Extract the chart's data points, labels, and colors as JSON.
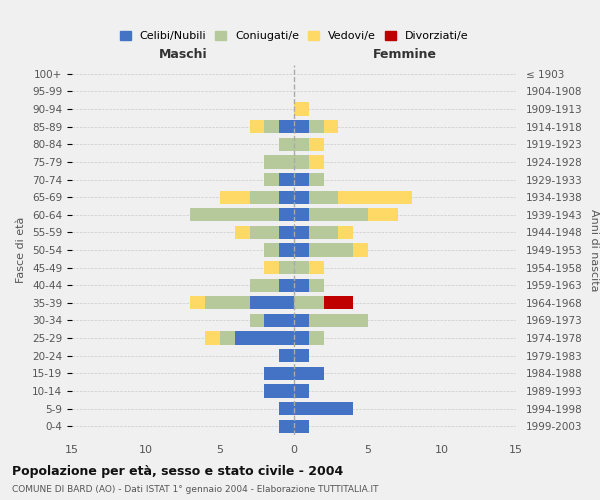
{
  "age_groups": [
    "0-4",
    "5-9",
    "10-14",
    "15-19",
    "20-24",
    "25-29",
    "30-34",
    "35-39",
    "40-44",
    "45-49",
    "50-54",
    "55-59",
    "60-64",
    "65-69",
    "70-74",
    "75-79",
    "80-84",
    "85-89",
    "90-94",
    "95-99",
    "100+"
  ],
  "birth_years": [
    "1999-2003",
    "1994-1998",
    "1989-1993",
    "1984-1988",
    "1979-1983",
    "1974-1978",
    "1969-1973",
    "1964-1968",
    "1959-1963",
    "1954-1958",
    "1949-1953",
    "1944-1948",
    "1939-1943",
    "1934-1938",
    "1929-1933",
    "1924-1928",
    "1919-1923",
    "1914-1918",
    "1909-1913",
    "1904-1908",
    "≤ 1903"
  ],
  "male": {
    "celibi": [
      1,
      1,
      2,
      2,
      1,
      4,
      2,
      3,
      1,
      0,
      1,
      1,
      1,
      1,
      1,
      0,
      0,
      1,
      0,
      0,
      0
    ],
    "coniugati": [
      0,
      0,
      0,
      0,
      0,
      1,
      1,
      3,
      2,
      1,
      1,
      2,
      6,
      2,
      1,
      2,
      1,
      1,
      0,
      0,
      0
    ],
    "vedovi": [
      0,
      0,
      0,
      0,
      0,
      1,
      0,
      1,
      0,
      1,
      0,
      1,
      0,
      2,
      0,
      0,
      0,
      1,
      0,
      0,
      0
    ],
    "divorziati": [
      0,
      0,
      0,
      0,
      0,
      0,
      0,
      0,
      0,
      0,
      0,
      0,
      0,
      0,
      0,
      0,
      0,
      0,
      0,
      0,
      0
    ]
  },
  "female": {
    "nubili": [
      1,
      4,
      1,
      2,
      1,
      1,
      1,
      0,
      1,
      0,
      1,
      1,
      1,
      1,
      1,
      0,
      0,
      1,
      0,
      0,
      0
    ],
    "coniugate": [
      0,
      0,
      0,
      0,
      0,
      1,
      4,
      2,
      1,
      1,
      3,
      2,
      4,
      2,
      1,
      1,
      1,
      1,
      0,
      0,
      0
    ],
    "vedove": [
      0,
      0,
      0,
      0,
      0,
      0,
      0,
      0,
      0,
      1,
      1,
      1,
      2,
      5,
      0,
      1,
      1,
      1,
      1,
      0,
      0
    ],
    "divorziate": [
      0,
      0,
      0,
      0,
      0,
      0,
      0,
      2,
      0,
      0,
      0,
      0,
      0,
      0,
      0,
      0,
      0,
      0,
      0,
      0,
      0
    ]
  },
  "colors": {
    "celibi": "#4472C4",
    "coniugati": "#B5C99A",
    "vedovi": "#FFD966",
    "divorziati": "#C00000"
  },
  "xlim": 15,
  "title": "Popolazione per età, sesso e stato civile - 2004",
  "subtitle": "COMUNE DI BARD (AO) - Dati ISTAT 1° gennaio 2004 - Elaborazione TUTTITALIA.IT",
  "ylabel_left": "Fasce di età",
  "ylabel_right": "Anni di nascita",
  "xlabel_left": "Maschi",
  "xlabel_right": "Femmine",
  "legend_labels": [
    "Celibi/Nubili",
    "Coniugati/e",
    "Vedovi/e",
    "Divorziati/e"
  ],
  "bg_color": "#f0f0f0",
  "grid_color": "#cccccc"
}
